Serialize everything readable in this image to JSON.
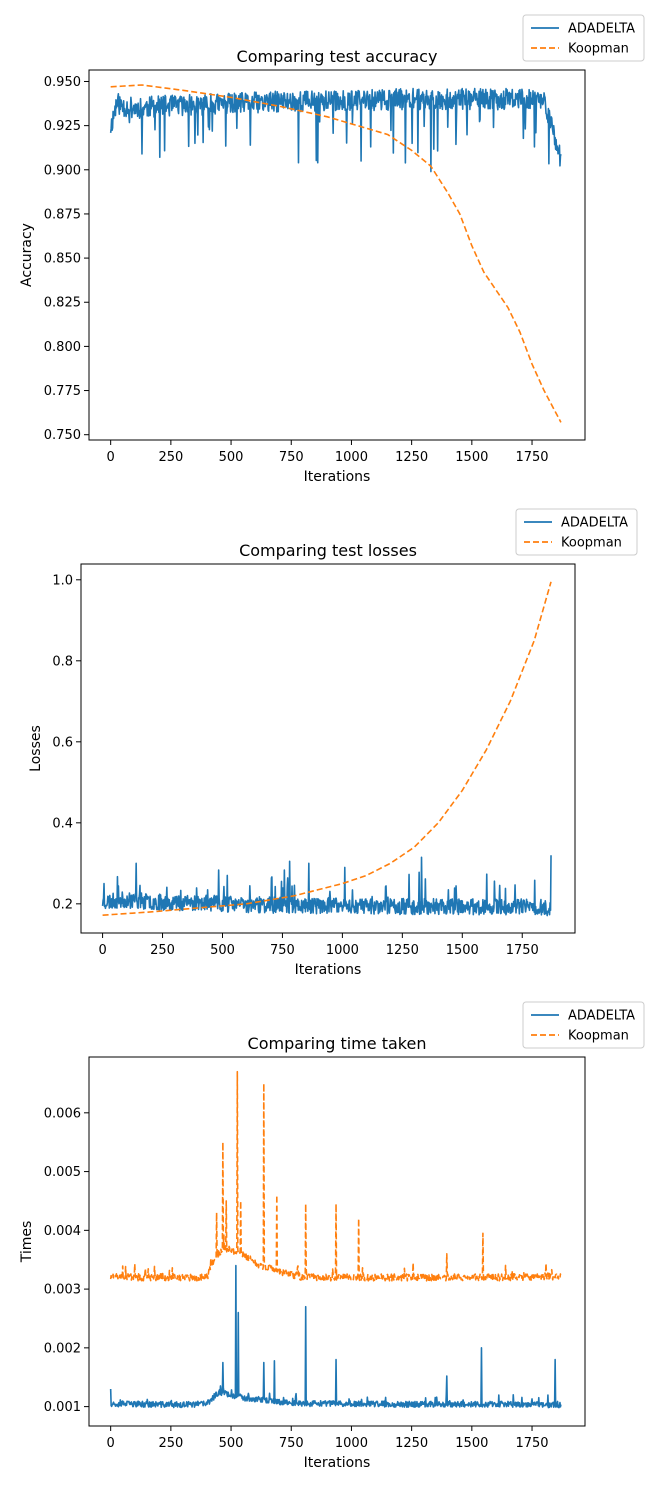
{
  "colors": {
    "adadelta": "#1f77b4",
    "koopman": "#ff7f0e",
    "axis": "#000000",
    "legend_border": "#cccccc"
  },
  "chart_data": [
    {
      "type": "line",
      "title": "Comparing test accuracy",
      "xlabel": "Iterations",
      "ylabel": "Accuracy",
      "xlim": [
        -90,
        1970
      ],
      "ylim": [
        0.747,
        0.9565
      ],
      "xticks": [
        0,
        250,
        500,
        750,
        1000,
        1250,
        1500,
        1750
      ],
      "xtick_labels": [
        "0",
        "250",
        "500",
        "750",
        "1000",
        "1250",
        "1500",
        "1750"
      ],
      "yticks": [
        0.75,
        0.775,
        0.8,
        0.825,
        0.85,
        0.875,
        0.9,
        0.925,
        0.95
      ],
      "ytick_labels": [
        "0.750",
        "0.775",
        "0.800",
        "0.825",
        "0.850",
        "0.875",
        "0.900",
        "0.925",
        "0.950"
      ],
      "legend": "top-right",
      "grid": false,
      "series": [
        {
          "name": "ADADELTA",
          "style": "solid",
          "noisy": true,
          "seed": 11,
          "x": [
            0,
            25,
            50,
            100,
            200,
            400,
            600,
            800,
            1000,
            1200,
            1400,
            1600,
            1800,
            1870
          ],
          "y": [
            0.924,
            0.938,
            0.936,
            0.935,
            0.936,
            0.937,
            0.938,
            0.939,
            0.939,
            0.94,
            0.94,
            0.94,
            0.94,
            0.906
          ],
          "noise_amp": 0.006,
          "spike_prob": 0.035,
          "spike_amp": -0.022,
          "spikes": [
            [
              130,
              0.909
            ],
            [
              350,
              0.915
            ],
            [
              580,
              0.914
            ],
            [
              780,
              0.904
            ],
            [
              860,
              0.904
            ],
            [
              1040,
              0.905
            ],
            [
              1080,
              0.913
            ],
            [
              1330,
              0.899
            ],
            [
              1760,
              0.913
            ]
          ]
        },
        {
          "name": "Koopman",
          "style": "dashed",
          "noisy": false,
          "x": [
            0,
            130,
            300,
            500,
            700,
            900,
            1050,
            1150,
            1250,
            1330,
            1400,
            1450,
            1500,
            1550,
            1650,
            1700,
            1750,
            1800,
            1870
          ],
          "y": [
            0.947,
            0.948,
            0.945,
            0.941,
            0.936,
            0.93,
            0.924,
            0.92,
            0.911,
            0.902,
            0.887,
            0.875,
            0.857,
            0.842,
            0.822,
            0.808,
            0.79,
            0.775,
            0.757
          ]
        }
      ]
    },
    {
      "type": "line",
      "title": "Comparing test losses",
      "xlabel": "Iterations",
      "ylabel": "Losses",
      "xlim": [
        -90,
        1970
      ],
      "ylim": [
        0.128,
        1.039
      ],
      "xticks": [
        0,
        250,
        500,
        750,
        1000,
        1250,
        1500,
        1750
      ],
      "xtick_labels": [
        "0",
        "250",
        "500",
        "750",
        "1000",
        "1250",
        "1500",
        "1750"
      ],
      "yticks": [
        0.2,
        0.4,
        0.6,
        0.8,
        1.0
      ],
      "ytick_labels": [
        "0.2",
        "0.4",
        "0.6",
        "0.8",
        "1.0"
      ],
      "legend": "top-right",
      "grid": false,
      "series": [
        {
          "name": "ADADELTA",
          "style": "solid",
          "noisy": true,
          "seed": 23,
          "x": [
            0,
            100,
            200,
            400,
            600,
            800,
            1000,
            1200,
            1400,
            1600,
            1800,
            1870
          ],
          "y": [
            0.205,
            0.21,
            0.205,
            0.202,
            0.198,
            0.196,
            0.195,
            0.194,
            0.193,
            0.193,
            0.192,
            0.19
          ],
          "noise_amp": 0.02,
          "spike_prob": 0.04,
          "spike_amp": 0.055,
          "spikes": [
            [
              5,
              0.25
            ],
            [
              140,
              0.3
            ],
            [
              520,
              0.27
            ],
            [
              780,
              0.305
            ],
            [
              860,
              0.3
            ],
            [
              1010,
              0.29
            ],
            [
              1330,
              0.315
            ],
            [
              1880,
              0.32
            ]
          ]
        },
        {
          "name": "Koopman",
          "style": "dashed",
          "noisy": false,
          "x": [
            0,
            200,
            400,
            600,
            800,
            1000,
            1100,
            1200,
            1300,
            1400,
            1500,
            1600,
            1700,
            1800,
            1870
          ],
          "y": [
            0.172,
            0.18,
            0.19,
            0.2,
            0.22,
            0.25,
            0.27,
            0.3,
            0.34,
            0.4,
            0.48,
            0.58,
            0.7,
            0.85,
            0.995
          ]
        }
      ]
    },
    {
      "type": "line",
      "title": "Comparing time taken",
      "xlabel": "Iterations",
      "ylabel": "Times",
      "xlim": [
        -90,
        1970
      ],
      "ylim": [
        0.00067,
        0.00695
      ],
      "xticks": [
        0,
        250,
        500,
        750,
        1000,
        1250,
        1500,
        1750
      ],
      "xtick_labels": [
        "0",
        "250",
        "500",
        "750",
        "1000",
        "1250",
        "1500",
        "1750"
      ],
      "yticks": [
        0.001,
        0.002,
        0.003,
        0.004,
        0.005,
        0.006
      ],
      "ytick_labels": [
        "0.001",
        "0.002",
        "0.003",
        "0.004",
        "0.005",
        "0.006"
      ],
      "legend": "top-right",
      "grid": false,
      "series": [
        {
          "name": "ADADELTA",
          "style": "solid",
          "noisy": true,
          "seed": 37,
          "x": [
            0,
            300,
            400,
            450,
            550,
            700,
            800,
            1000,
            1200,
            1400,
            1600,
            1870
          ],
          "y": [
            0.00105,
            0.00103,
            0.00105,
            0.00125,
            0.00115,
            0.00108,
            0.00105,
            0.00105,
            0.00104,
            0.00104,
            0.00104,
            0.00103
          ],
          "noise_amp": 5e-05,
          "spike_prob": 0.03,
          "spike_amp": 0.00012,
          "spikes": [
            [
              0,
              0.0013
            ],
            [
              465,
              0.00175
            ],
            [
              520,
              0.0034
            ],
            [
              530,
              0.0026
            ],
            [
              635,
              0.00175
            ],
            [
              680,
              0.00178
            ],
            [
              810,
              0.0027
            ],
            [
              935,
              0.0018
            ],
            [
              1395,
              0.00152
            ],
            [
              1540,
              0.002
            ],
            [
              1845,
              0.0018
            ]
          ]
        },
        {
          "name": "Koopman",
          "style": "dashed",
          "noisy": true,
          "seed": 51,
          "x": [
            0,
            400,
            430,
            470,
            550,
            620,
            700,
            800,
            1000,
            1200,
            1400,
            1600,
            1870
          ],
          "y": [
            0.0032,
            0.0032,
            0.0035,
            0.0037,
            0.0036,
            0.0034,
            0.0033,
            0.0032,
            0.0032,
            0.0032,
            0.0032,
            0.0032,
            0.00322
          ],
          "noise_amp": 6e-05,
          "spike_prob": 0.03,
          "spike_amp": 0.00016,
          "spikes": [
            [
              440,
              0.0043
            ],
            [
              465,
              0.0055
            ],
            [
              480,
              0.0045
            ],
            [
              525,
              0.0067
            ],
            [
              540,
              0.0045
            ],
            [
              635,
              0.0065
            ],
            [
              690,
              0.0046
            ],
            [
              810,
              0.00445
            ],
            [
              935,
              0.00445
            ],
            [
              1030,
              0.0042
            ],
            [
              1395,
              0.0036
            ],
            [
              1545,
              0.00395
            ]
          ]
        }
      ]
    }
  ]
}
